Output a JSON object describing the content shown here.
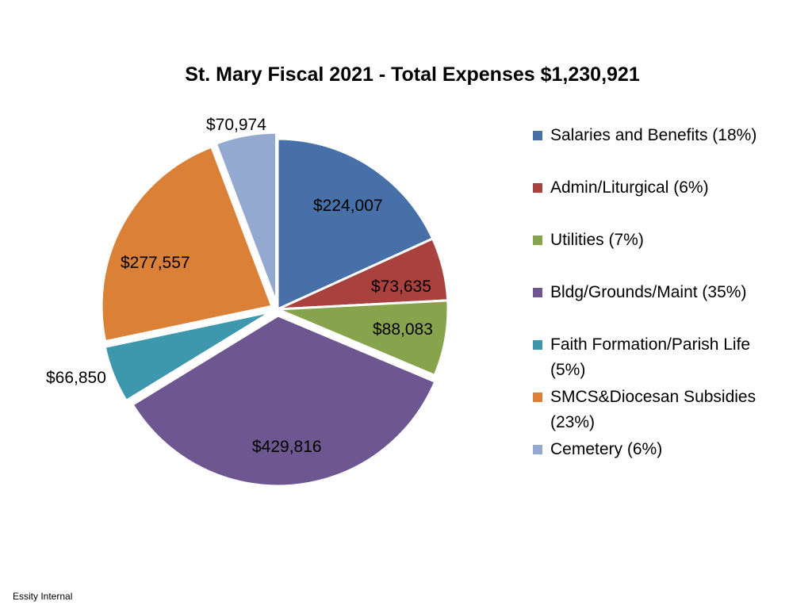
{
  "footer": "Essity Internal",
  "chart_data": {
    "type": "pie",
    "title": "St. Mary Fiscal 2021 - Total Expenses $1,230,921",
    "slices": [
      {
        "category": "Salaries and Benefits",
        "legend": "Salaries and Benefits (18%)",
        "value": 224007,
        "label": "$224,007",
        "color": "#4670A7",
        "exploded": false
      },
      {
        "category": "Admin/Liturgical",
        "legend": "Admin/Liturgical (6%)",
        "value": 73635,
        "label": "$73,635",
        "color": "#A9423F",
        "exploded": false
      },
      {
        "category": "Utilities",
        "legend": "Utilities (7%)",
        "value": 88083,
        "label": "$88,083",
        "color": "#87A34C",
        "exploded": false
      },
      {
        "category": "Bldg/Grounds/Maint",
        "legend": "Bldg/Grounds/Maint (35%)",
        "value": 429816,
        "label": "$429,816",
        "color": "#6E5690",
        "exploded": true
      },
      {
        "category": "Faith Formation/Parish Life",
        "legend": "Faith Formation/Parish Life (5%)",
        "value": 66850,
        "label": "$66,850",
        "color": "#3D97AD",
        "exploded": true
      },
      {
        "category": "SMCS&Diocesan Subsidies",
        "legend": "SMCS&Diocesan Subsidies (23%)",
        "value": 277557,
        "label": "$277,557",
        "color": "#DA8137",
        "exploded": true
      },
      {
        "category": "Cemetery",
        "legend": "Cemetery (6%)",
        "value": 70974,
        "label": "$70,974",
        "color": "#93A9CF",
        "exploded": true
      }
    ],
    "legend_position": "right"
  }
}
